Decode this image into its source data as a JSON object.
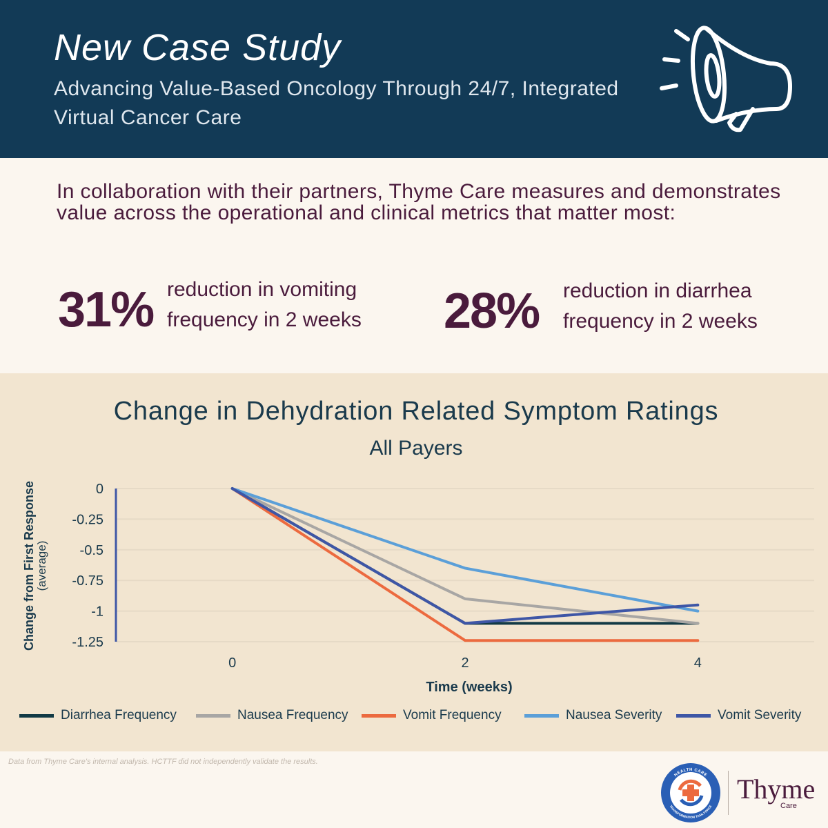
{
  "header": {
    "title": "New Case Study",
    "subtitle": "Advancing Value-Based Oncology Through 24/7, Integrated Virtual Cancer Care"
  },
  "intro": "In collaboration with their partners, Thyme Care measures and demonstrates value across the operational and clinical metrics that matter most:",
  "stats": [
    {
      "value": "31%",
      "line1": "reduction in vomiting",
      "line2": "frequency in 2 weeks"
    },
    {
      "value": "28%",
      "line1": "reduction in diarrhea",
      "line2": "frequency in 2 weeks"
    }
  ],
  "footnote": "Data from Thyme Care's internal analysis. HCTTF did not independently validate the results.",
  "brand": {
    "name": "Thyme",
    "sub": "Care",
    "badge_top": "HEALTH CARE",
    "badge_bottom": "TRANSFORMATION TASK FORCE"
  },
  "colors": {
    "header_bg": "#123a56",
    "accent": "#4a1b3c",
    "chart_bg": "#f2e5d0"
  },
  "chart_data": {
    "type": "line",
    "title": "Change in Dehydration Related Symptom Ratings",
    "subtitle": "All Payers",
    "xlabel": "Time (weeks)",
    "ylabel": "Change from First Response",
    "ylabel_sub": "(average)",
    "x": [
      0,
      2,
      4
    ],
    "x_tick_labels": [
      "0",
      "2",
      "4"
    ],
    "xlim": [
      -1,
      5
    ],
    "ylim": [
      -1.25,
      0
    ],
    "y_ticks": [
      0,
      -0.25,
      -0.5,
      -0.75,
      -1,
      -1.25
    ],
    "y_tick_labels": [
      "0",
      "-0.25",
      "-0.5",
      "-0.75",
      "-1",
      "-1.25"
    ],
    "grid": true,
    "legend_position": "bottom",
    "series": [
      {
        "name": "Diarrhea Frequency",
        "color": "#123a45",
        "values": [
          0,
          -1.1,
          -1.1
        ]
      },
      {
        "name": "Nausea Frequency",
        "color": "#a8a6a4",
        "values": [
          0,
          -0.9,
          -1.1
        ]
      },
      {
        "name": "Vomit Frequency",
        "color": "#ec6a3f",
        "values": [
          0,
          -1.24,
          -1.24
        ]
      },
      {
        "name": "Nausea Severity",
        "color": "#5b9fd8",
        "values": [
          0,
          -0.65,
          -1.0
        ]
      },
      {
        "name": "Vomit Severity",
        "color": "#3e56a6",
        "values": [
          0,
          -1.1,
          -0.95
        ]
      }
    ]
  }
}
